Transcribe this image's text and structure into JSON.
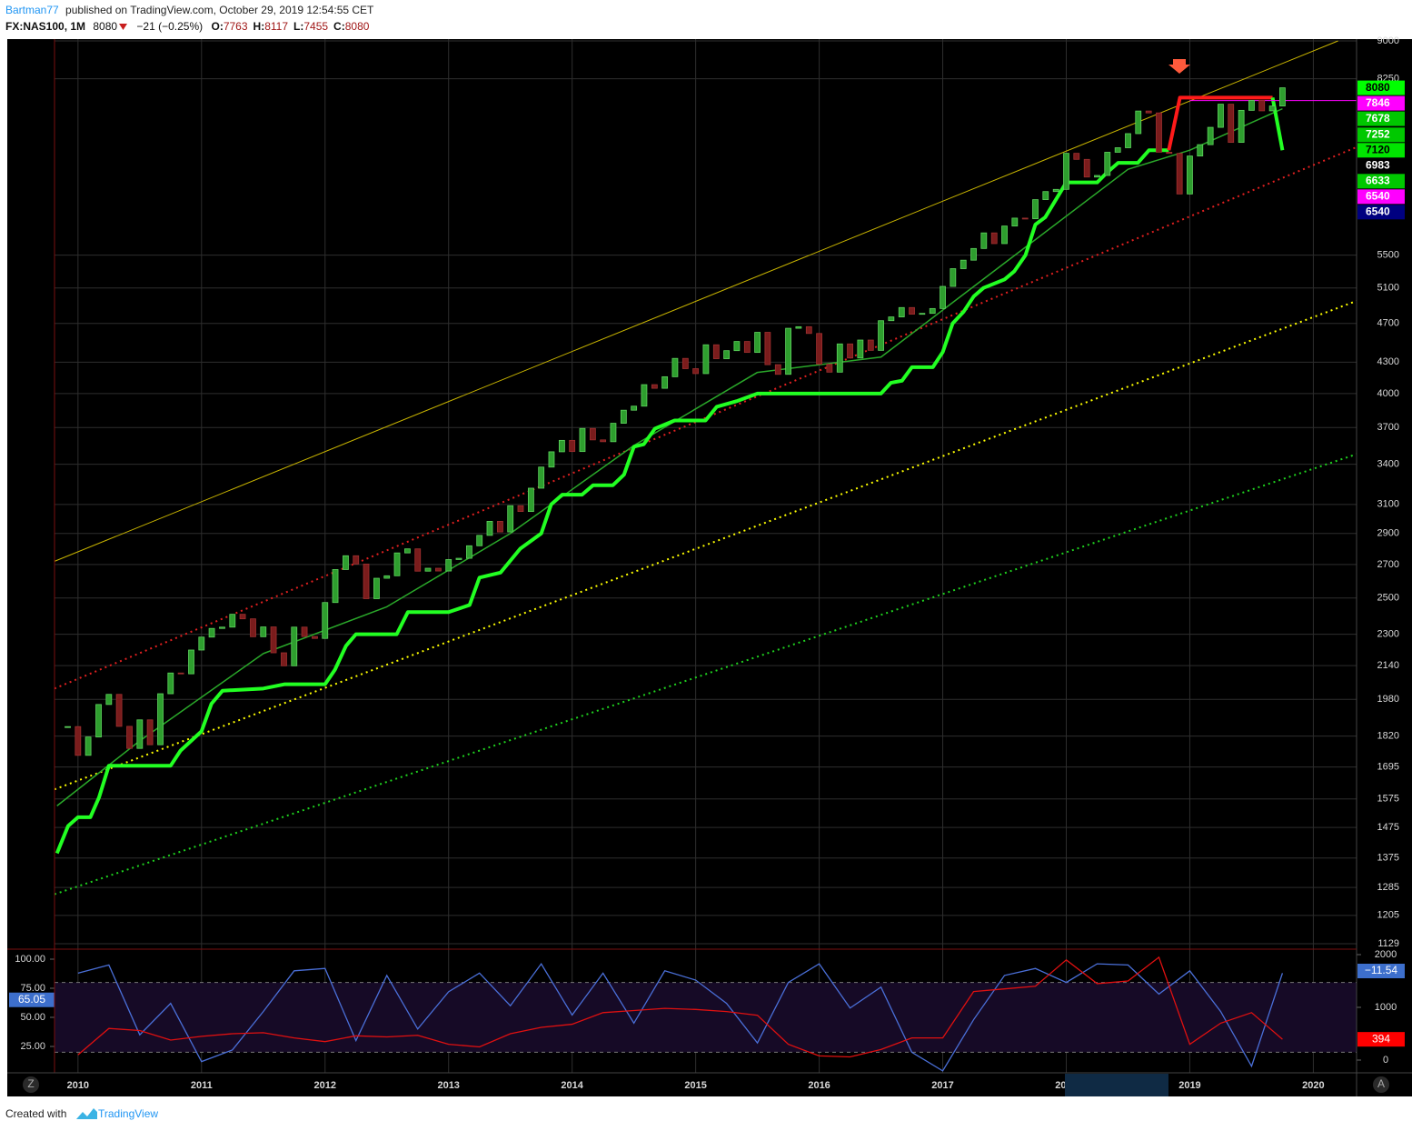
{
  "header": {
    "author": "Bartman77",
    "published": "published on TradingView.com, October 29, 2019 12:54:55 CET",
    "symbol": "FX:NAS100, 1M",
    "last": 8080,
    "change": "−21 (−0.25%)",
    "ohlc": [
      {
        "label": "O:",
        "value": 7763
      },
      {
        "label": "H:",
        "value": 8117
      },
      {
        "label": "L:",
        "value": 7455
      },
      {
        "label": "C:",
        "value": 8080
      }
    ]
  },
  "chart_data": {
    "type": "candlestick",
    "log_scale": true,
    "grid": true,
    "up_color": "#2e9e2e",
    "down_color": "#7a1c1c",
    "xlim": [
      2009.81,
      2020.35
    ],
    "xticks": [
      2010,
      2011,
      2012,
      2013,
      2014,
      2015,
      2016,
      2017,
      2018,
      2019,
      2020
    ],
    "ylim": [
      1129,
      9000
    ],
    "yticks": [
      9000,
      8250,
      5500,
      5100,
      4700,
      4300,
      4000,
      3700,
      3400,
      3100,
      2900,
      2700,
      2500,
      2300,
      2140,
      1980,
      1820,
      1695,
      1575,
      1475,
      1375,
      1285,
      1205,
      1129
    ],
    "x": [
      2009.917,
      2010,
      2010.083,
      2010.167,
      2010.25,
      2010.333,
      2010.417,
      2010.5,
      2010.583,
      2010.667,
      2010.75,
      2010.833,
      2010.917,
      2011,
      2011.083,
      2011.167,
      2011.25,
      2011.333,
      2011.417,
      2011.5,
      2011.583,
      2011.667,
      2011.75,
      2011.833,
      2011.917,
      2012,
      2012.083,
      2012.167,
      2012.25,
      2012.333,
      2012.417,
      2012.5,
      2012.583,
      2012.667,
      2012.75,
      2012.833,
      2012.917,
      2013,
      2013.083,
      2013.167,
      2013.25,
      2013.333,
      2013.417,
      2013.5,
      2013.583,
      2013.667,
      2013.75,
      2013.833,
      2013.917,
      2014,
      2014.083,
      2014.167,
      2014.25,
      2014.333,
      2014.417,
      2014.5,
      2014.583,
      2014.667,
      2014.75,
      2014.833,
      2014.917,
      2015,
      2015.083,
      2015.167,
      2015.25,
      2015.333,
      2015.417,
      2015.5,
      2015.583,
      2015.667,
      2015.75,
      2015.833,
      2015.917,
      2016,
      2016.083,
      2016.167,
      2016.25,
      2016.333,
      2016.417,
      2016.5,
      2016.583,
      2016.667,
      2016.75,
      2016.833,
      2016.917,
      2017,
      2017.083,
      2017.167,
      2017.25,
      2017.333,
      2017.417,
      2017.5,
      2017.583,
      2017.667,
      2017.75,
      2017.833,
      2017.917,
      2018,
      2018.083,
      2018.167,
      2018.25,
      2018.333,
      2018.417,
      2018.5,
      2018.583,
      2018.667,
      2018.75,
      2018.833,
      2018.917,
      2019,
      2019.083,
      2019.167,
      2019.25,
      2019.333,
      2019.417,
      2019.5,
      2019.583,
      2019.667,
      2019.75
    ],
    "close": [
      1860,
      1741,
      1816,
      1957,
      2003,
      1861,
      1769,
      1889,
      1784,
      2006,
      2104,
      2100,
      2218,
      2285,
      2331,
      2338,
      2408,
      2383,
      2287,
      2339,
      2204,
      2139,
      2338,
      2288,
      2278,
      2474,
      2669,
      2755,
      2703,
      2496,
      2616,
      2631,
      2773,
      2799,
      2659,
      2677,
      2660,
      2731,
      2739,
      2819,
      2887,
      2982,
      2910,
      3091,
      3050,
      3218,
      3378,
      3499,
      3592,
      3501,
      3692,
      3596,
      3581,
      3736,
      3850,
      3886,
      4083,
      4049,
      4158,
      4337,
      4236,
      4188,
      4475,
      4334,
      4415,
      4509,
      4397,
      4605,
      4275,
      4181,
      4648,
      4665,
      4593,
      4280,
      4202,
      4484,
      4341,
      4524,
      4418,
      4730,
      4771,
      4875,
      4801,
      4810,
      4864,
      5118,
      5331,
      5436,
      5584,
      5788,
      5647,
      5880,
      5988,
      5979,
      6248,
      6365,
      6397,
      6950,
      6854,
      6581,
      6605,
      6967,
      7040,
      7272,
      7660,
      7627,
      6968,
      6949,
      6330,
      6907,
      7090,
      7378,
      7781,
      7127,
      7672,
      7848,
      7663,
      7749,
      8080
    ],
    "overlays": [
      {
        "color": "#c8b400",
        "style": "solid",
        "width": 1,
        "points": [
          [
            2009.81,
            2720
          ],
          [
            2020.2,
            9000
          ]
        ]
      },
      {
        "color": "#e02020",
        "style": "dotted",
        "width": 2,
        "points": [
          [
            2009.81,
            2030
          ],
          [
            2020.35,
            7050
          ]
        ]
      },
      {
        "color": "#ffff00",
        "style": "dotted",
        "width": 2,
        "points": [
          [
            2009.81,
            1610
          ],
          [
            2020.35,
            4950
          ]
        ]
      },
      {
        "color": "#1fd11f",
        "style": "dotted",
        "width": 2,
        "points": [
          [
            2009.81,
            1265
          ],
          [
            2020.35,
            3480
          ]
        ]
      },
      {
        "color": "#2aa82a",
        "style": "solid",
        "width": 1.5,
        "points": [
          [
            2009.83,
            1550
          ],
          [
            2010.5,
            1800
          ],
          [
            2011.5,
            2200
          ],
          [
            2012.5,
            2450
          ],
          [
            2013.5,
            2900
          ],
          [
            2014.5,
            3550
          ],
          [
            2015.5,
            4200
          ],
          [
            2016.5,
            4350
          ],
          [
            2017.5,
            5400
          ],
          [
            2018.5,
            6700
          ],
          [
            2019,
            7000
          ],
          [
            2019.75,
            7700
          ]
        ]
      },
      {
        "color": "#22ff22",
        "style": "solid",
        "width": 4,
        "points": [
          [
            2009.83,
            1390
          ],
          [
            2009.92,
            1480
          ],
          [
            2010,
            1510
          ],
          [
            2010.1,
            1510
          ],
          [
            2010.17,
            1580
          ],
          [
            2010.25,
            1700
          ],
          [
            2010.75,
            1700
          ],
          [
            2010.83,
            1760
          ],
          [
            2011,
            1840
          ],
          [
            2011.08,
            1960
          ],
          [
            2011.17,
            2020
          ],
          [
            2011.5,
            2030
          ],
          [
            2011.67,
            2050
          ],
          [
            2012,
            2050
          ],
          [
            2012.08,
            2120
          ],
          [
            2012.17,
            2240
          ],
          [
            2012.25,
            2300
          ],
          [
            2012.58,
            2300
          ],
          [
            2012.67,
            2420
          ],
          [
            2013,
            2420
          ],
          [
            2013.17,
            2460
          ],
          [
            2013.25,
            2620
          ],
          [
            2013.42,
            2650
          ],
          [
            2013.58,
            2800
          ],
          [
            2013.75,
            2900
          ],
          [
            2013.83,
            3100
          ],
          [
            2013.92,
            3170
          ],
          [
            2014.08,
            3170
          ],
          [
            2014.17,
            3240
          ],
          [
            2014.33,
            3240
          ],
          [
            2014.42,
            3320
          ],
          [
            2014.5,
            3540
          ],
          [
            2014.58,
            3560
          ],
          [
            2014.67,
            3690
          ],
          [
            2014.83,
            3760
          ],
          [
            2015.08,
            3760
          ],
          [
            2015.17,
            3880
          ],
          [
            2015.33,
            3930
          ],
          [
            2015.5,
            4000
          ],
          [
            2016.5,
            4000
          ],
          [
            2016.58,
            4100
          ],
          [
            2016.67,
            4120
          ],
          [
            2016.75,
            4250
          ],
          [
            2016.92,
            4250
          ],
          [
            2017,
            4400
          ],
          [
            2017.08,
            4700
          ],
          [
            2017.17,
            4830
          ],
          [
            2017.25,
            5000
          ],
          [
            2017.33,
            5100
          ],
          [
            2017.5,
            5200
          ],
          [
            2017.58,
            5300
          ],
          [
            2017.67,
            5500
          ],
          [
            2017.75,
            5900
          ],
          [
            2017.83,
            6000
          ],
          [
            2018,
            6500
          ],
          [
            2018.25,
            6500
          ],
          [
            2018.33,
            6650
          ],
          [
            2018.42,
            6800
          ],
          [
            2018.58,
            6800
          ],
          [
            2018.67,
            7000
          ],
          [
            2018.83,
            7000
          ]
        ]
      },
      {
        "color": "#ff1a1a",
        "style": "solid",
        "width": 4,
        "points": [
          [
            2018.83,
            7000
          ],
          [
            2018.92,
            7900
          ],
          [
            2019.67,
            7900
          ]
        ]
      },
      {
        "color": "#22ff22",
        "style": "solid",
        "width": 4,
        "points": [
          [
            2019.67,
            7900
          ],
          [
            2019.75,
            7000
          ]
        ]
      },
      {
        "color": "#ff00ff",
        "style": "solid",
        "width": 1,
        "points": [
          [
            2019,
            7846
          ],
          [
            2020.35,
            7846
          ]
        ]
      }
    ],
    "price_labels": [
      {
        "value": 8080,
        "color": "#00ff00",
        "text_color": "#000000"
      },
      {
        "value": 7846,
        "color": "#ff00ff",
        "text_color": "#ffffff"
      },
      {
        "value": 7678,
        "color": "#00c800",
        "text_color": "#ffffff"
      },
      {
        "value": 7252,
        "color": "#00c800",
        "text_color": "#ffffff"
      },
      {
        "value": 7120,
        "color": "#00e600",
        "text_color": "#000000"
      },
      {
        "value": 6983,
        "color": "#000000",
        "text_color": "#ffffff"
      },
      {
        "value": 6633,
        "color": "#00c800",
        "text_color": "#ffffff"
      },
      {
        "value": 6540,
        "color": "#ff00ff",
        "text_color": "#ffffff"
      },
      {
        "value": 6540,
        "color": "#000080",
        "text_color": "#ffffff"
      }
    ],
    "indicator": {
      "ylim": [
        0,
        100
      ],
      "yticks": [
        {
          "value": 100,
          "label": "100.00"
        },
        {
          "value": 75,
          "label": "75.00"
        },
        {
          "value": 50,
          "label": "50.00"
        },
        {
          "value": 25,
          "label": "25.00"
        }
      ],
      "y2lim": [
        0,
        2000
      ],
      "y2ticks": [
        2000,
        1000,
        0
      ],
      "band": [
        20,
        80
      ],
      "x": [
        2010,
        2010.25,
        2010.5,
        2010.75,
        2011,
        2011.25,
        2011.5,
        2011.75,
        2012,
        2012.25,
        2012.5,
        2012.75,
        2013,
        2013.25,
        2013.5,
        2013.75,
        2014,
        2014.25,
        2014.5,
        2014.75,
        2015,
        2015.25,
        2015.5,
        2015.75,
        2016,
        2016.25,
        2016.5,
        2016.75,
        2017,
        2017.25,
        2017.5,
        2017.75,
        2018,
        2018.25,
        2018.5,
        2018.75,
        2019,
        2019.25,
        2019.5,
        2019.75
      ],
      "series": [
        {
          "color": "#4a6fd8",
          "values": [
            88,
            95,
            35,
            62,
            12,
            22,
            55,
            90,
            92,
            30,
            86,
            40,
            72,
            88,
            60,
            96,
            52,
            88,
            45,
            90,
            82,
            62,
            28,
            80,
            96,
            58,
            76,
            20,
            4,
            48,
            86,
            92,
            80,
            96,
            95,
            70,
            90,
            55,
            8,
            88
          ]
        },
        {
          "color": "#e01010",
          "axis": "y2",
          "values": [
            100,
            600,
            560,
            380,
            450,
            500,
            520,
            420,
            350,
            460,
            440,
            470,
            300,
            250,
            500,
            620,
            680,
            900,
            940,
            980,
            960,
            920,
            850,
            300,
            80,
            60,
            200,
            420,
            420,
            1300,
            1350,
            1400,
            1900,
            1450,
            1500,
            1950,
            300,
            700,
            900,
            394
          ]
        }
      ],
      "last_labels": [
        {
          "value": 65.05,
          "color": "#3d6fcc"
        },
        {
          "value": -11.54,
          "label": "−11.54",
          "color": "#3d6fcc"
        },
        {
          "value": 394,
          "color": "#ff0000"
        }
      ]
    }
  },
  "footer": {
    "created": "Created with",
    "brand": "TradingView",
    "zoom_button": "Z",
    "auto_button": "A"
  }
}
